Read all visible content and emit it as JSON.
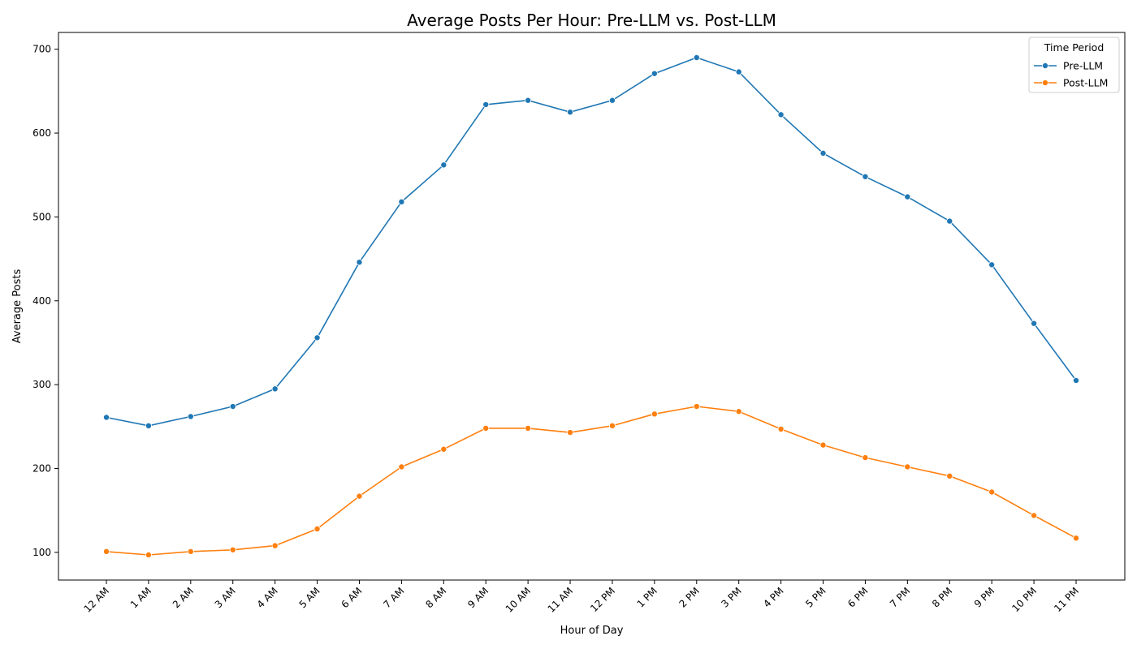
{
  "chart_data": {
    "type": "line",
    "title": "Average Posts Per Hour: Pre-LLM vs. Post-LLM",
    "xlabel": "Hour of Day",
    "ylabel": "Average Posts",
    "categories": [
      "12 AM",
      "1 AM",
      "2 AM",
      "3 AM",
      "4 AM",
      "5 AM",
      "6 AM",
      "7 AM",
      "8 AM",
      "9 AM",
      "10 AM",
      "11 AM",
      "12 PM",
      "1 PM",
      "2 PM",
      "3 PM",
      "4 PM",
      "5 PM",
      "6 PM",
      "7 PM",
      "8 PM",
      "9 PM",
      "10 PM",
      "11 PM"
    ],
    "ylim": [
      67,
      720
    ],
    "yticks": [
      100,
      200,
      300,
      400,
      500,
      600,
      700
    ],
    "grid": false,
    "legend": {
      "title": "Time Period",
      "placement": "top-right"
    },
    "series": [
      {
        "name": "Pre-LLM",
        "color": "#1f77b4",
        "values": [
          261,
          251,
          262,
          274,
          295,
          356,
          446,
          518,
          562,
          634,
          639,
          625,
          639,
          671,
          690,
          673,
          622,
          576,
          548,
          524,
          495,
          443,
          373,
          305
        ]
      },
      {
        "name": "Post-LLM",
        "color": "#ff7f0e",
        "values": [
          101,
          97,
          101,
          103,
          108,
          128,
          167,
          202,
          223,
          248,
          248,
          243,
          251,
          265,
          274,
          268,
          247,
          228,
          213,
          202,
          191,
          172,
          144,
          117
        ]
      }
    ]
  }
}
